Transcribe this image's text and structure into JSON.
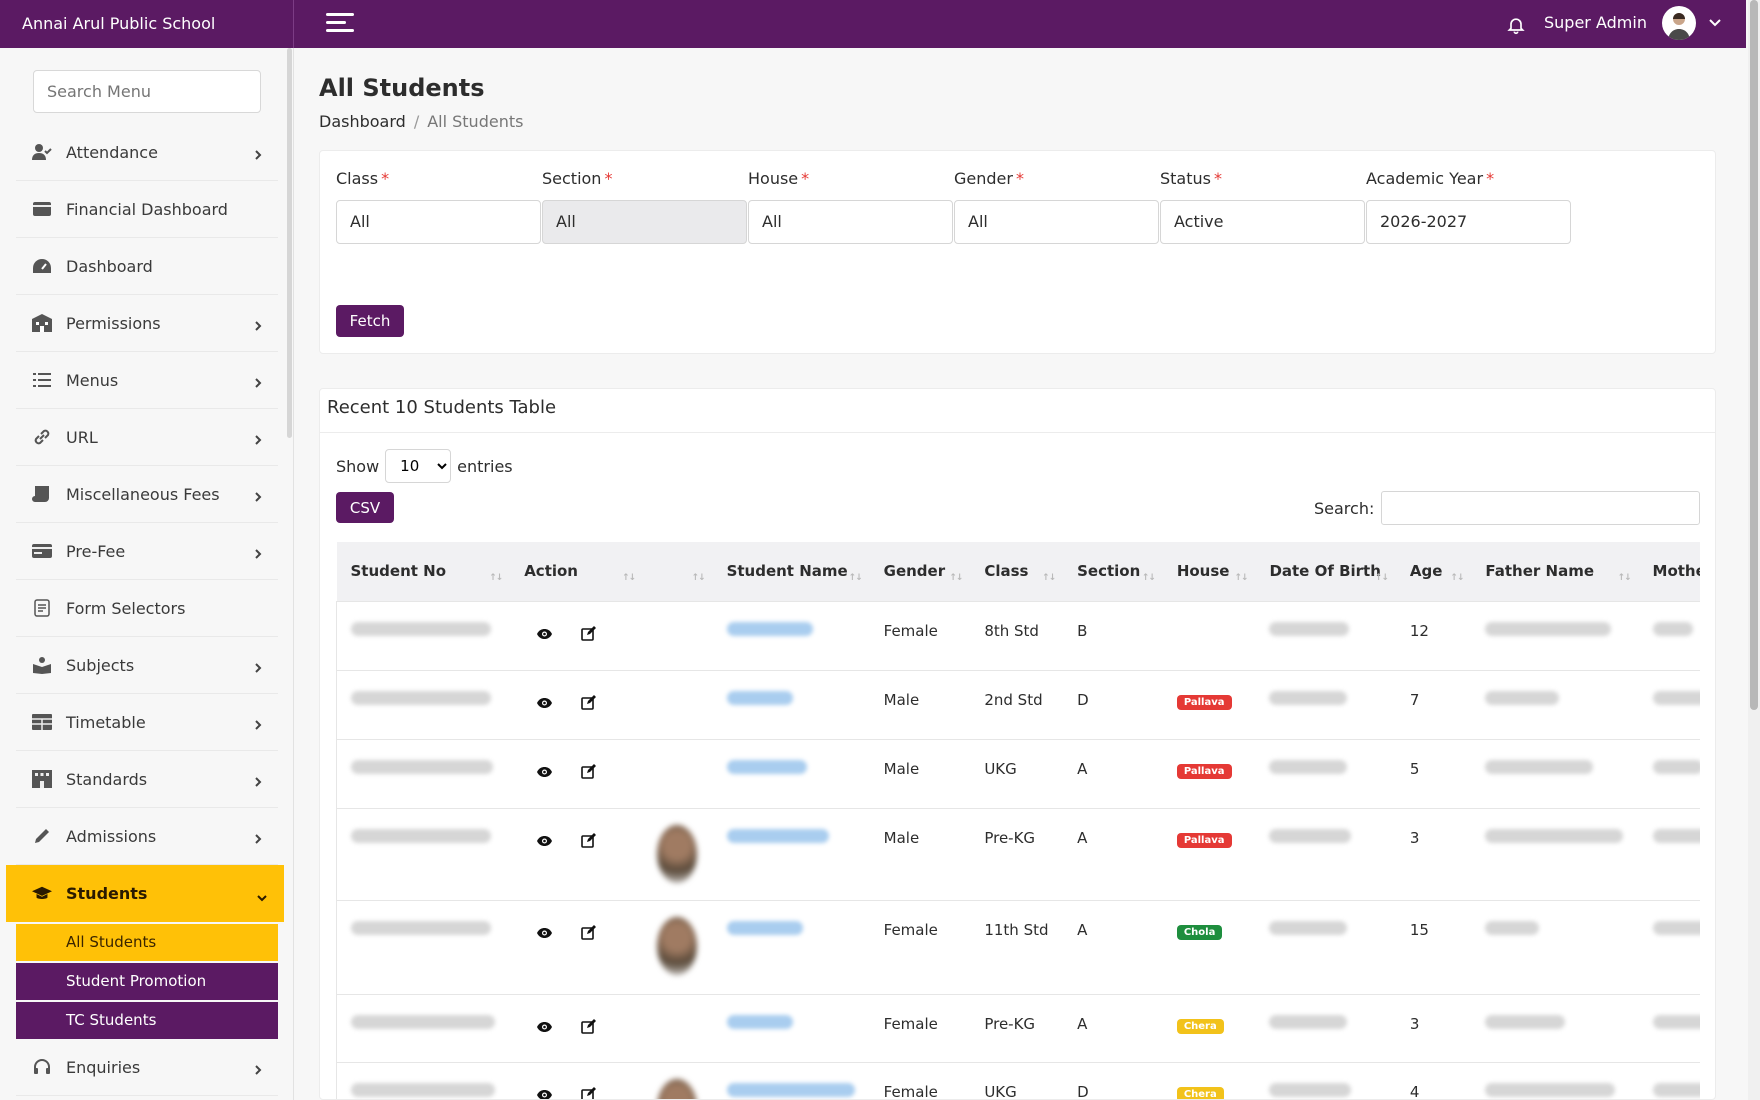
{
  "app": {
    "school_name": "Annai Arul Public School",
    "user_name": "Super Admin"
  },
  "sidebar": {
    "search_placeholder": "Search Menu",
    "items": [
      {
        "label": "Attendance",
        "icon": "user-check-icon",
        "has_children": true
      },
      {
        "label": "Financial Dashboard",
        "icon": "wallet-icon",
        "has_children": false
      },
      {
        "label": "Dashboard",
        "icon": "gauge-icon",
        "has_children": false
      },
      {
        "label": "Permissions",
        "icon": "building-icon",
        "has_children": true
      },
      {
        "label": "Menus",
        "icon": "list-icon",
        "has_children": true
      },
      {
        "label": "URL",
        "icon": "link-icon",
        "has_children": true
      },
      {
        "label": "Miscellaneous Fees",
        "icon": "scroll-icon",
        "has_children": true
      },
      {
        "label": "Pre-Fee",
        "icon": "card-icon",
        "has_children": true
      },
      {
        "label": "Form Selectors",
        "icon": "form-icon",
        "has_children": false
      },
      {
        "label": "Subjects",
        "icon": "book-user-icon",
        "has_children": true
      },
      {
        "label": "Timetable",
        "icon": "table-icon",
        "has_children": true
      },
      {
        "label": "Standards",
        "icon": "school-building-icon",
        "has_children": true
      },
      {
        "label": "Admissions",
        "icon": "pen-icon",
        "has_children": true
      },
      {
        "label": "Students",
        "icon": "graduation-cap-icon",
        "has_children": true,
        "active": true
      },
      {
        "label": "Enquiries",
        "icon": "headset-icon",
        "has_children": true
      }
    ],
    "students_submenu": [
      "All Students",
      "Student Promotion",
      "TC Students"
    ]
  },
  "page": {
    "title": "All Students",
    "breadcrumb": {
      "root": "Dashboard",
      "separator": "/",
      "current": "All Students"
    }
  },
  "filters": {
    "fields": [
      {
        "label": "Class",
        "value": "All"
      },
      {
        "label": "Section",
        "value": "All",
        "disabled": true
      },
      {
        "label": "House",
        "value": "All"
      },
      {
        "label": "Gender",
        "value": "All"
      },
      {
        "label": "Status",
        "value": "Active"
      },
      {
        "label": "Academic Year",
        "value": "2026-2027"
      }
    ],
    "required_mark": "*",
    "fetch_label": "Fetch"
  },
  "table_card": {
    "title": "Recent 10 Students Table",
    "show_label": "Show",
    "entries_label": "entries",
    "page_size": "10",
    "csv_label": "CSV",
    "search_label": "Search:",
    "columns": [
      "Student No",
      "Action",
      "",
      "Student Name",
      "Gender",
      "Class",
      "Section",
      "House",
      "Date Of Birth",
      "Age",
      "Father Name",
      "Mother Na"
    ],
    "rows": [
      {
        "gender": "Female",
        "class": "8th Std",
        "section": "B",
        "house": "",
        "age": "12",
        "photo": false
      },
      {
        "gender": "Male",
        "class": "2nd Std",
        "section": "D",
        "house": "Pallava",
        "age": "7",
        "photo": false
      },
      {
        "gender": "Male",
        "class": "UKG",
        "section": "A",
        "house": "Pallava",
        "age": "5",
        "photo": false
      },
      {
        "gender": "Male",
        "class": "Pre-KG",
        "section": "A",
        "house": "Pallava",
        "age": "3",
        "photo": true
      },
      {
        "gender": "Female",
        "class": "11th Std",
        "section": "A",
        "house": "Chola",
        "age": "15",
        "photo": true
      },
      {
        "gender": "Female",
        "class": "Pre-KG",
        "section": "A",
        "house": "Chera",
        "age": "3",
        "photo": false
      },
      {
        "gender": "Female",
        "class": "UKG",
        "section": "D",
        "house": "Chera",
        "age": "4",
        "photo": true
      }
    ]
  },
  "colors": {
    "primary": "#5b1a63",
    "accent": "#ffc107",
    "pallava": "#e53935",
    "chola": "#1e8e3e",
    "chera": "#f2c21a"
  }
}
